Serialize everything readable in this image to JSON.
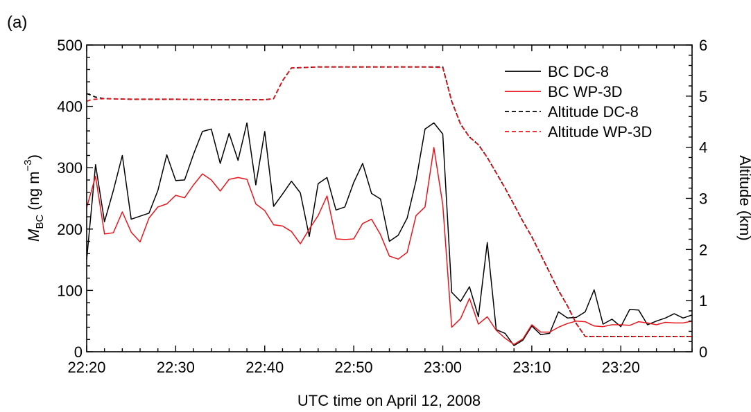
{
  "panel_label": "(a)",
  "colors": {
    "dc8": "#000000",
    "wp3d": "#e8141c",
    "axis": "#000000"
  },
  "chart_data": {
    "type": "line",
    "xlabel": "UTC time on April 12, 2008",
    "ylabel_main": "M",
    "ylabel_sub": "BC",
    "ylabel_unit_pre": " (ng m",
    "ylabel_unit_sup": "−3",
    "ylabel_unit_post": ")",
    "y2label": "Altitude (km)",
    "xlim_minutes_after_2220": [
      0,
      68
    ],
    "ylim": [
      0,
      500
    ],
    "y2lim": [
      0,
      6
    ],
    "x_ticks": [
      "22:20",
      "22:30",
      "22:40",
      "22:50",
      "23:00",
      "23:10",
      "23:20"
    ],
    "y_ticks": [
      "0",
      "100",
      "200",
      "300",
      "400",
      "500"
    ],
    "y2_ticks": [
      "0",
      "1",
      "2",
      "3",
      "4",
      "5",
      "6"
    ],
    "legend_placement": "top-right",
    "series": [
      {
        "name": "BC DC-8",
        "axis": "left",
        "dash": "solid",
        "color_key": "dc8",
        "x": [
          0,
          1,
          2,
          3,
          4,
          5,
          6,
          7,
          8,
          9,
          10,
          11,
          12,
          13,
          14,
          15,
          16,
          17,
          18,
          19,
          20,
          21,
          22,
          23,
          24,
          25,
          26,
          27,
          28,
          29,
          30,
          31,
          32,
          33,
          34,
          35,
          36,
          37,
          38,
          39,
          40,
          41,
          42,
          43,
          44,
          45,
          46,
          47,
          48,
          49,
          50,
          51,
          52,
          53,
          54,
          55,
          56,
          57,
          58,
          59,
          60,
          61,
          62,
          63,
          64,
          65,
          66,
          67,
          68
        ],
        "values": [
          150,
          305,
          212,
          263,
          320,
          216,
          221,
          226,
          263,
          321,
          279,
          280,
          322,
          359,
          363,
          307,
          356,
          312,
          373,
          272,
          359,
          237,
          257,
          278,
          259,
          188,
          274,
          284,
          231,
          236,
          276,
          307,
          258,
          249,
          180,
          190,
          218,
          279,
          363,
          373,
          355,
          97,
          82,
          106,
          57,
          178,
          36,
          30,
          10,
          19,
          42,
          28,
          30,
          65,
          55,
          56,
          65,
          101,
          45,
          53,
          41,
          69,
          68,
          44,
          50,
          55,
          62,
          55,
          60
        ]
      },
      {
        "name": "BC WP-3D",
        "axis": "left",
        "dash": "solid",
        "color_key": "wp3d",
        "x": [
          0,
          1,
          2,
          3,
          4,
          5,
          6,
          7,
          8,
          9,
          10,
          11,
          12,
          13,
          14,
          15,
          16,
          17,
          18,
          19,
          20,
          21,
          22,
          23,
          24,
          25,
          26,
          27,
          28,
          29,
          30,
          31,
          32,
          33,
          34,
          35,
          36,
          37,
          38,
          39,
          40,
          41,
          42,
          43,
          44,
          45,
          46,
          47,
          48,
          49,
          50,
          51,
          52,
          53,
          54,
          55,
          56,
          57,
          58,
          59,
          60,
          61,
          62,
          63,
          64,
          65,
          66,
          67,
          68
        ],
        "values": [
          235,
          286,
          192,
          194,
          228,
          195,
          179,
          218,
          236,
          241,
          255,
          251,
          272,
          290,
          280,
          262,
          281,
          284,
          281,
          241,
          230,
          207,
          205,
          196,
          176,
          200,
          222,
          254,
          184,
          183,
          184,
          209,
          216,
          191,
          156,
          151,
          162,
          222,
          236,
          333,
          240,
          40,
          54,
          87,
          45,
          57,
          35,
          22,
          12,
          21,
          44,
          32,
          32,
          40,
          46,
          50,
          49,
          42,
          41,
          44,
          44,
          43,
          49,
          47,
          44,
          48,
          47,
          47,
          50
        ]
      },
      {
        "name": "Altitude DC-8",
        "axis": "right",
        "dash": "dashed",
        "color_key": "dc8",
        "x": [
          0,
          0.5,
          1,
          2,
          5,
          10,
          15,
          20,
          21,
          22,
          23,
          26,
          30,
          35,
          38,
          40,
          41,
          42,
          43,
          44,
          45,
          46,
          47,
          48,
          49,
          50,
          51,
          52,
          53,
          54,
          55,
          56,
          57,
          58,
          60,
          63,
          65,
          68
        ],
        "values": [
          5.05,
          5.02,
          4.98,
          4.95,
          4.94,
          4.94,
          4.93,
          4.93,
          4.95,
          5.3,
          5.55,
          5.57,
          5.57,
          5.57,
          5.57,
          5.57,
          4.9,
          4.45,
          4.2,
          4.05,
          3.8,
          3.5,
          3.2,
          2.88,
          2.55,
          2.25,
          1.9,
          1.55,
          1.2,
          0.9,
          0.55,
          0.3,
          0.3,
          0.3,
          0.3,
          0.3,
          0.3,
          0.3
        ]
      },
      {
        "name": "Altitude WP-3D",
        "axis": "right",
        "dash": "dashed",
        "color_key": "wp3d",
        "x": [
          0,
          0.5,
          1,
          2,
          5,
          10,
          15,
          20,
          21,
          22,
          23,
          26,
          30,
          35,
          38,
          40,
          41,
          42,
          43,
          44,
          45,
          46,
          47,
          48,
          49,
          50,
          51,
          52,
          53,
          54,
          55,
          56,
          57,
          58,
          60,
          63,
          65,
          68
        ],
        "values": [
          4.9,
          4.93,
          4.94,
          4.95,
          4.94,
          4.94,
          4.93,
          4.93,
          4.95,
          5.3,
          5.55,
          5.57,
          5.57,
          5.57,
          5.57,
          5.56,
          4.9,
          4.45,
          4.2,
          4.05,
          3.8,
          3.5,
          3.2,
          2.88,
          2.55,
          2.25,
          1.9,
          1.55,
          1.2,
          0.9,
          0.55,
          0.3,
          0.3,
          0.3,
          0.3,
          0.3,
          0.3,
          0.3
        ]
      }
    ]
  }
}
